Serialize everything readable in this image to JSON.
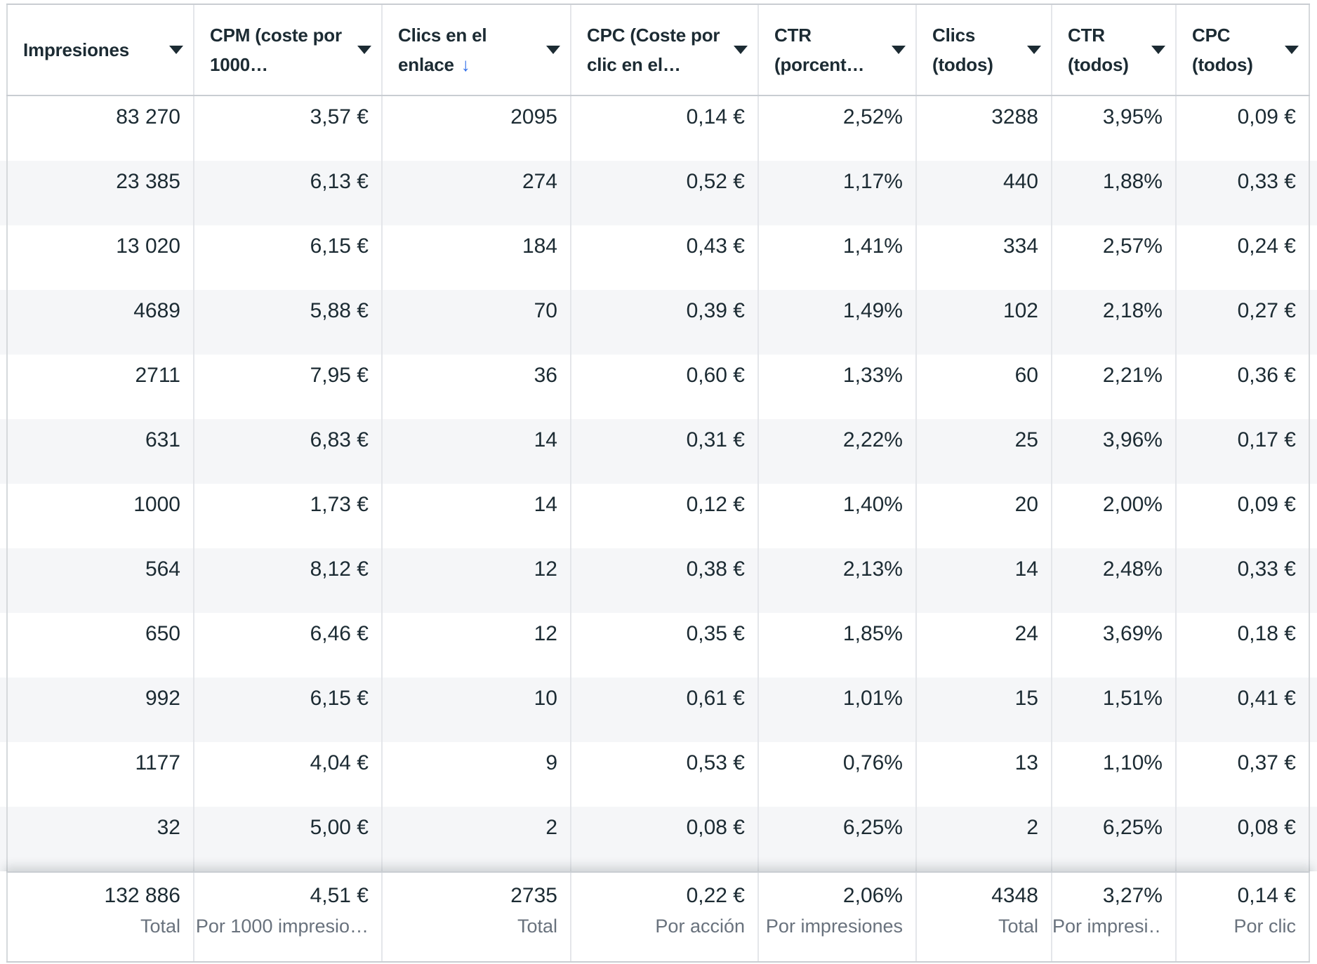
{
  "table": {
    "columns": [
      {
        "id": "impresiones",
        "label": "Impresiones",
        "sorted": false
      },
      {
        "id": "cpm",
        "label": "CPM (coste por 1000…",
        "sorted": false
      },
      {
        "id": "clics-en-el-enlace",
        "label": "Clics en el enlace",
        "sorted": true
      },
      {
        "id": "cpc",
        "label": "CPC (Coste por clic en el…",
        "sorted": false
      },
      {
        "id": "ctr",
        "label": "CTR (porcent…",
        "sorted": false
      },
      {
        "id": "clics-todos",
        "label": "Clics (todos)",
        "sorted": false
      },
      {
        "id": "ctr-todos",
        "label": "CTR (todos)",
        "sorted": false
      },
      {
        "id": "cpc-todos",
        "label": "CPC (todos)",
        "sorted": false
      }
    ],
    "rows": [
      [
        "83 270",
        "3,57 €",
        "2095",
        "0,14 €",
        "2,52%",
        "3288",
        "3,95%",
        "0,09 €"
      ],
      [
        "23 385",
        "6,13 €",
        "274",
        "0,52 €",
        "1,17%",
        "440",
        "1,88%",
        "0,33 €"
      ],
      [
        "13 020",
        "6,15 €",
        "184",
        "0,43 €",
        "1,41%",
        "334",
        "2,57%",
        "0,24 €"
      ],
      [
        "4689",
        "5,88 €",
        "70",
        "0,39 €",
        "1,49%",
        "102",
        "2,18%",
        "0,27 €"
      ],
      [
        "2711",
        "7,95 €",
        "36",
        "0,60 €",
        "1,33%",
        "60",
        "2,21%",
        "0,36 €"
      ],
      [
        "631",
        "6,83 €",
        "14",
        "0,31 €",
        "2,22%",
        "25",
        "3,96%",
        "0,17 €"
      ],
      [
        "1000",
        "1,73 €",
        "14",
        "0,12 €",
        "1,40%",
        "20",
        "2,00%",
        "0,09 €"
      ],
      [
        "564",
        "8,12 €",
        "12",
        "0,38 €",
        "2,13%",
        "14",
        "2,48%",
        "0,33 €"
      ],
      [
        "650",
        "6,46 €",
        "12",
        "0,35 €",
        "1,85%",
        "24",
        "3,69%",
        "0,18 €"
      ],
      [
        "992",
        "6,15 €",
        "10",
        "0,61 €",
        "1,01%",
        "15",
        "1,51%",
        "0,41 €"
      ],
      [
        "1177",
        "4,04 €",
        "9",
        "0,53 €",
        "0,76%",
        "13",
        "1,10%",
        "0,37 €"
      ],
      [
        "32",
        "5,00 €",
        "2",
        "0,08 €",
        "6,25%",
        "2",
        "6,25%",
        "0,08 €"
      ]
    ],
    "totals": {
      "values": [
        "132 886",
        "4,51 €",
        "2735",
        "0,22 €",
        "2,06%",
        "4348",
        "3,27%",
        "0,14 €"
      ],
      "labels": [
        "Total",
        "Por 1000 impresio…",
        "Total",
        "Por acción",
        "Por impresiones",
        "Total",
        "Por impresi…",
        "Por clic"
      ]
    }
  },
  "icons": {
    "sort_descending": "↓",
    "header_menu_caret": "▼"
  },
  "colors": {
    "text": "#1c2b33",
    "muted_label": "#69727d",
    "accent_blue": "#2e6de8",
    "alt_row_bg": "#f5f6f8",
    "border_strong": "#c9cdd2",
    "border_column": "#e4e6ea"
  }
}
